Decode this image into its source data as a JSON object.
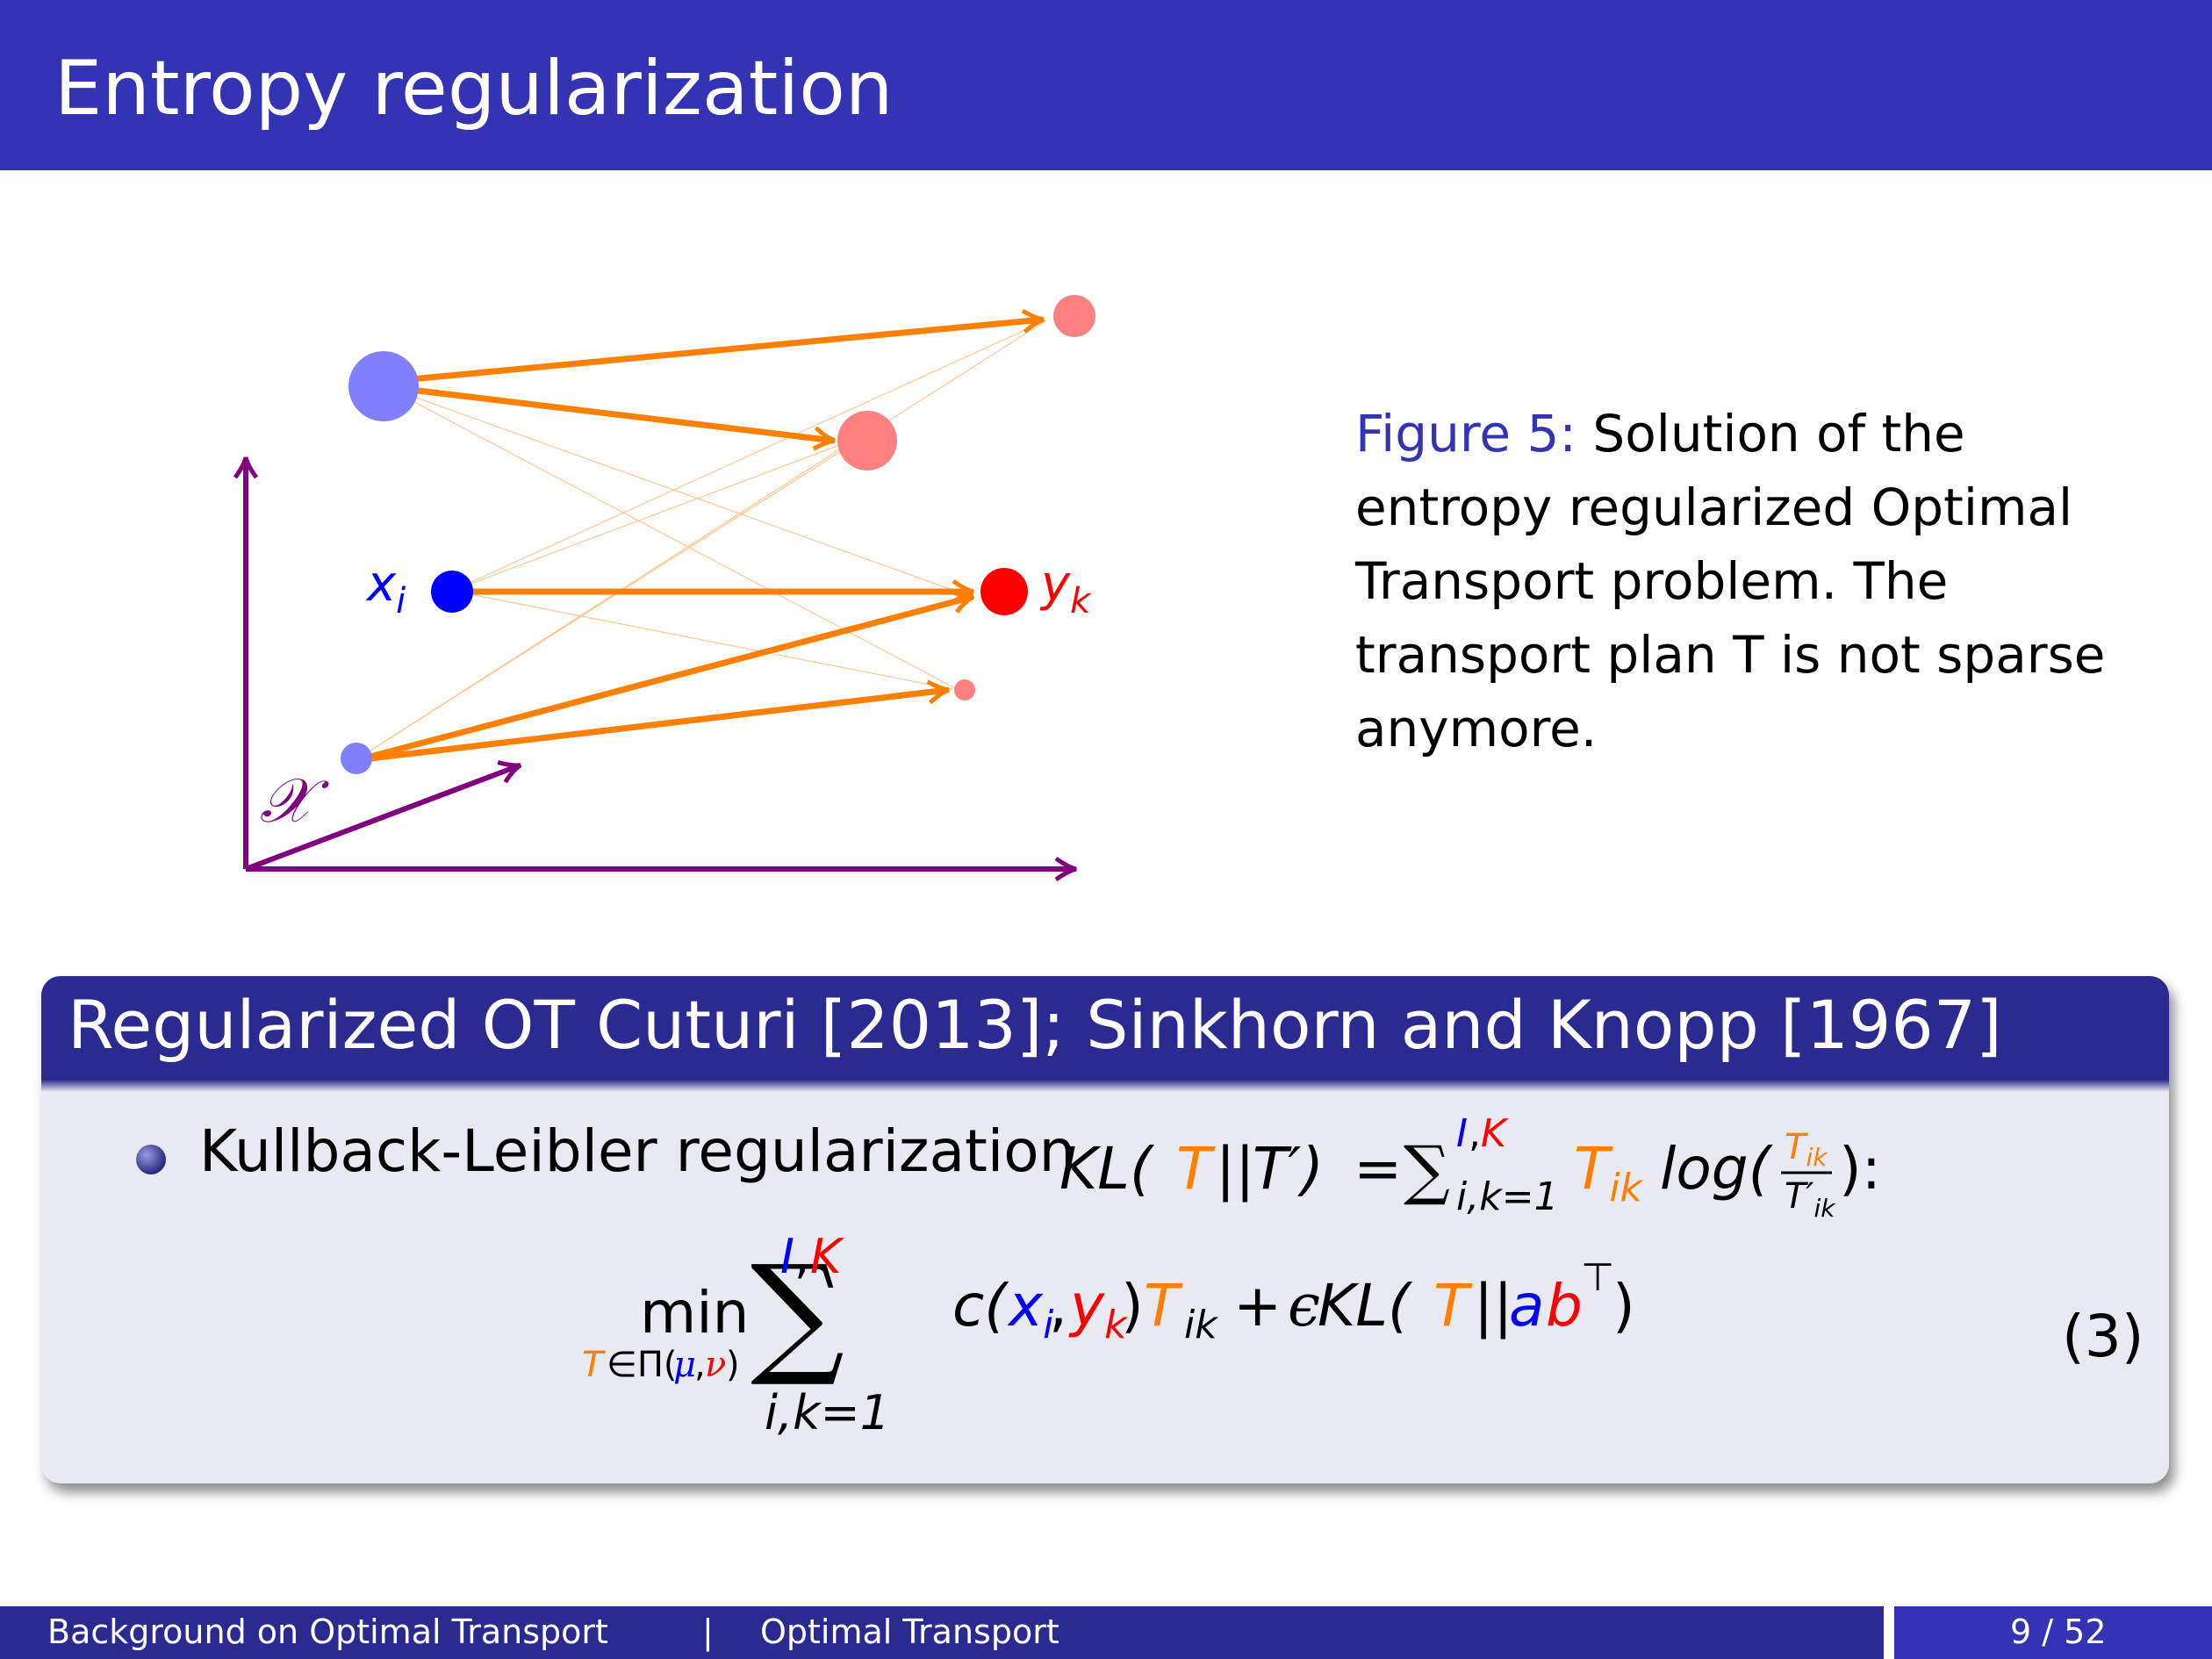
{
  "slide": {
    "title": "Entropy regularization"
  },
  "figure": {
    "source_label": "x",
    "source_sub": "i",
    "target_label": "y",
    "target_sub": "k",
    "space_label": "𝒳",
    "colors": {
      "axes": "#800080",
      "flow": "#ff8000",
      "source": "#0000ff",
      "source_light": "#8080ff",
      "target": "#ff0000",
      "target_light": "#ff8080"
    }
  },
  "caption": {
    "label": "Figure 5:",
    "text": "Solution of the entropy regularized Optimal Transport problem. The transport plan T is not sparse anymore."
  },
  "block": {
    "title": "Regularized OT Cuturi [2013]; Sinkhorn and Knopp [1967]",
    "bullet_text": "Kullback-Leibler regularization",
    "equation_number": "(3)"
  },
  "footer": {
    "section": "Background on Optimal Transport",
    "separator": "|",
    "subsection": "Optimal Transport",
    "page": "9 / 52"
  }
}
